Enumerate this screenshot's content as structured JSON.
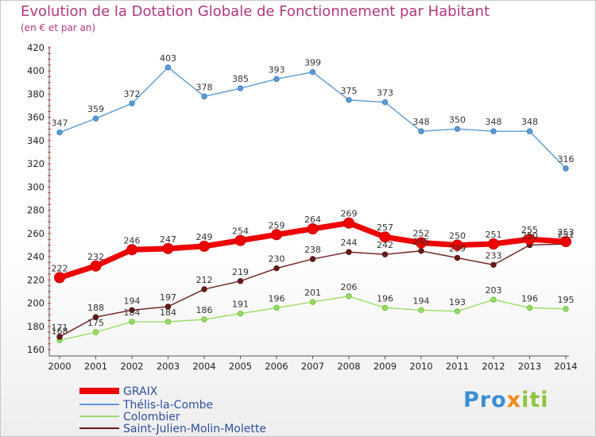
{
  "title": "Evolution de la Dotation Globale de Fonctionnement par Habitant",
  "subtitle": "(en € et par an)",
  "logo": {
    "p1": "Pro",
    "p2": "x",
    "p3": "iti"
  },
  "colors": {
    "title": "#b0377f",
    "GRAIX": "#ee0000",
    "Thelis": "#5b9bd5",
    "Colombier": "#99dd66",
    "StJulien": "#6b1a1a"
  },
  "chart_data": {
    "type": "line",
    "title": "Evolution de la Dotation Globale de Fonctionnement par Habitant",
    "subtitle": "(en € et par an)",
    "x": [
      "2000",
      "2001",
      "2002",
      "2003",
      "2004",
      "2005",
      "2006",
      "2007",
      "2008",
      "2009",
      "2010",
      "2011",
      "2012",
      "2013",
      "2014"
    ],
    "ylim": [
      160,
      420
    ],
    "yticks": [
      "160",
      "180",
      "200",
      "220",
      "240",
      "260",
      "280",
      "300",
      "320",
      "340",
      "360",
      "380",
      "400",
      "420"
    ],
    "grid": false,
    "legend_position": "bottom-left",
    "series": [
      {
        "name": "GRAIX",
        "color": "#ee0000",
        "values": [
          222,
          232,
          246,
          247,
          249,
          254,
          259,
          264,
          269,
          257,
          252,
          250,
          251,
          255,
          253
        ],
        "labels": [
          "222",
          "232",
          "246",
          "247",
          "249",
          "254",
          "259",
          "264",
          "269",
          "257",
          "252",
          "250",
          "251",
          "255",
          "253"
        ]
      },
      {
        "name": "Thélis-la-Combe",
        "color": "#5b9bd5",
        "values": [
          347,
          359,
          372,
          403,
          378,
          385,
          393,
          399,
          375,
          373,
          348,
          350,
          348,
          348,
          316
        ],
        "labels": [
          "347",
          "359",
          "372",
          "403",
          "378",
          "385",
          "393",
          "399",
          "375",
          "373",
          "348",
          "350",
          "348",
          "348",
          "316"
        ]
      },
      {
        "name": "Colombier",
        "color": "#99dd66",
        "values": [
          168,
          175,
          184,
          184,
          186,
          191,
          196,
          201,
          206,
          196,
          194,
          193,
          203,
          196,
          195
        ],
        "labels": [
          "168",
          "175",
          "184",
          "184",
          "186",
          "191",
          "196",
          "201",
          "206",
          "196",
          "194",
          "193",
          "203",
          "196",
          "195"
        ]
      },
      {
        "name": "Saint-Julien-Molin-Molette",
        "color": "#6b1a1a",
        "values": [
          171,
          188,
          194,
          197,
          212,
          219,
          230,
          238,
          244,
          242,
          245,
          239,
          233,
          250,
          251
        ],
        "labels": [
          "171",
          "188",
          "194",
          "197",
          "212",
          "219",
          "230",
          "238",
          "244",
          "242",
          "245",
          "239",
          "233",
          "250",
          "251"
        ]
      }
    ]
  }
}
